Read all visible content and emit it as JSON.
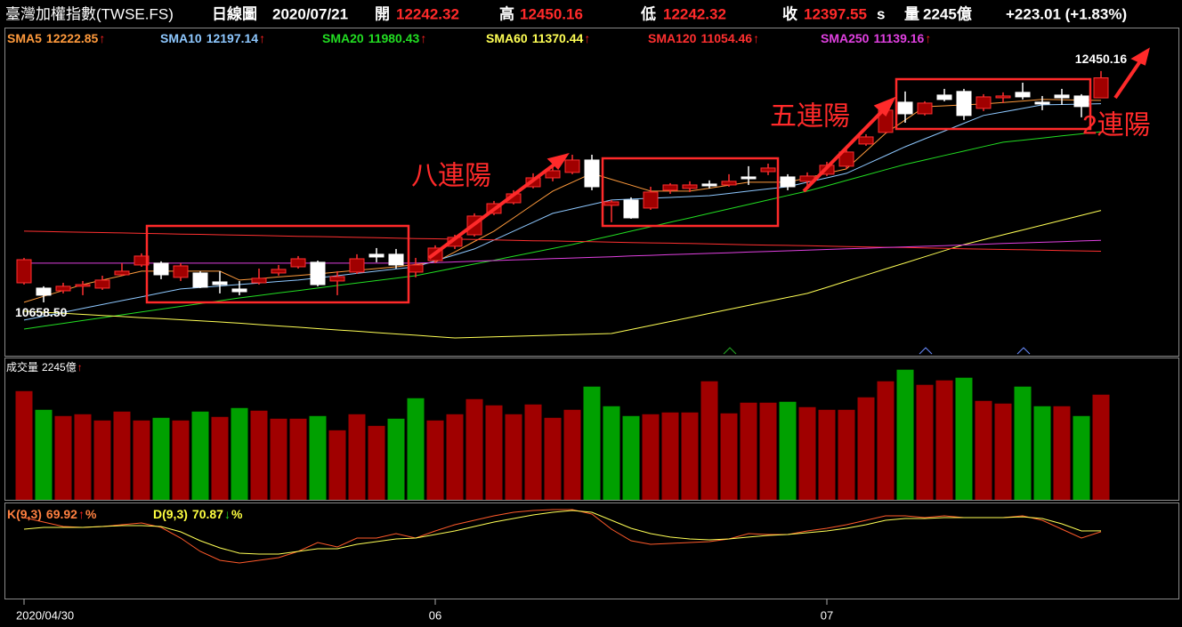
{
  "header": {
    "title": "臺灣加權指數(TWSE.FS)",
    "period": "日線圖",
    "date": "2020/07/21",
    "open_label": "開",
    "open": "12242.32",
    "high_label": "高",
    "high": "12450.16",
    "low_label": "低",
    "low": "12242.32",
    "close_label": "收",
    "close": "12397.55",
    "close_suffix": "s",
    "volume_label": "量",
    "volume": "2245億",
    "change": "+223.01 (+1.83%)"
  },
  "chart_data": [
    {
      "type": "candlestick",
      "categories": [
        "2020/04/30",
        null,
        null,
        null,
        null,
        null,
        null,
        null,
        null,
        null,
        null,
        null,
        null,
        null,
        null,
        null,
        null,
        null,
        null,
        null,
        null,
        "06",
        null,
        null,
        null,
        null,
        null,
        null,
        null,
        null,
        null,
        null,
        null,
        null,
        null,
        null,
        null,
        null,
        null,
        null,
        null,
        "07",
        null,
        null,
        null,
        null,
        null,
        null,
        null,
        null,
        null,
        null,
        null,
        null,
        null,
        null
      ],
      "open": [
        10810,
        10769,
        10748,
        10783,
        10769,
        10872,
        10948,
        10962,
        10852,
        10886,
        10817,
        10762,
        10810,
        10886,
        10934,
        10969,
        10824,
        10893,
        11031,
        11031,
        10893,
        10982,
        11093,
        11182,
        11348,
        11430,
        11554,
        11623,
        11665,
        11761,
        11410,
        11451,
        11389,
        11527,
        11541,
        11575,
        11568,
        11630,
        11671,
        11630,
        11596,
        11651,
        11713,
        11885,
        11975,
        12209,
        12119,
        12264,
        12292,
        12161,
        12243,
        12285,
        12209,
        12264,
        12257,
        12242.32
      ],
      "high": [
        11003,
        10783,
        10810,
        10824,
        10865,
        10962,
        11038,
        10976,
        10962,
        10900,
        10900,
        10824,
        10920,
        10948,
        11017,
        10982,
        10900,
        11031,
        11079,
        11072,
        11003,
        11100,
        11182,
        11348,
        11444,
        11527,
        11658,
        11706,
        11802,
        11802,
        11451,
        11472,
        11554,
        11582,
        11596,
        11603,
        11651,
        11713,
        11733,
        11651,
        11665,
        11747,
        11844,
        11961,
        12188,
        12292,
        12216,
        12312,
        12312,
        12271,
        12285,
        12360,
        12257,
        12312,
        12271,
        12450.16
      ],
      "low": [
        10796,
        10658.5,
        10728,
        10714,
        10755,
        10865,
        10934,
        10838,
        10824,
        10769,
        10728,
        10714,
        10796,
        10865,
        10920,
        10783,
        10714,
        10879,
        10969,
        10920,
        10852,
        10962,
        11072,
        11168,
        11334,
        11417,
        11541,
        11596,
        11651,
        11527,
        11279,
        11306,
        11375,
        11499,
        11513,
        11541,
        11554,
        11568,
        11644,
        11527,
        11554,
        11637,
        11692,
        11871,
        11968,
        12050,
        12106,
        12216,
        12071,
        12140,
        12202,
        12230,
        12147,
        12188,
        12092,
        12242.32
      ],
      "close": [
        10989,
        10714,
        10783,
        10796,
        10831,
        10900,
        11017,
        10872,
        10941,
        10776,
        10796,
        10741,
        10845,
        10914,
        10996,
        10796,
        10858,
        10996,
        11010,
        10948,
        10948,
        11079,
        11162,
        11327,
        11423,
        11499,
        11623,
        11678,
        11761,
        11554,
        11437,
        11313,
        11513,
        11568,
        11568,
        11561,
        11596,
        11616,
        11699,
        11554,
        11637,
        11720,
        11823,
        11940,
        12147,
        12119,
        12202,
        12230,
        12106,
        12250,
        12257,
        12250,
        12195,
        12243,
        12175,
        12397.55
      ],
      "up_color": "#a00000",
      "up_edge": "#ff3030",
      "down_color": "#ffffff",
      "ylim": [
        10245,
        12780
      ],
      "max_label": "12450.16",
      "min_label": "10658.50",
      "overlays": [
        {
          "name": "SMA5",
          "color": "#ff9a3c",
          "trend": "↑",
          "trend_color": "#ff2020",
          "values": [
            10659,
            10705,
            10750,
            10796,
            10831,
            10865,
            10900,
            10900,
            10900,
            10900,
            10900,
            10831,
            10843,
            10855,
            10867,
            10879,
            10893,
            10907,
            10920,
            10934,
            10952,
            10969,
            11049,
            11130,
            11210,
            11313,
            11417,
            11520,
            11589,
            11658,
            11612,
            11566,
            11520,
            11520,
            11520,
            11543,
            11566,
            11589,
            11589,
            11589,
            11623,
            11658,
            11692,
            11830,
            11968,
            12071,
            12174,
            12181,
            12188,
            12195,
            12207,
            12218,
            12230,
            12228,
            12225,
            12222.85
          ]
        },
        {
          "name": "SMA10",
          "color": "#8ec8ff",
          "trend": "↑",
          "trend_color": "#ff2020",
          "values": [
            10521,
            10551,
            10581,
            10612,
            10642,
            10672,
            10702,
            10732,
            10762,
            10774,
            10785,
            10797,
            10808,
            10820,
            10831,
            10848,
            10865,
            10883,
            10900,
            10917,
            10934,
            10980,
            11026,
            11072,
            11141,
            11210,
            11279,
            11348,
            11382,
            11417,
            11451,
            11458,
            11465,
            11471,
            11478,
            11485,
            11502,
            11520,
            11537,
            11554,
            11589,
            11623,
            11658,
            11727,
            11795,
            11864,
            11925,
            11985,
            12046,
            12106,
            12133,
            12161,
            12188,
            12191,
            12194,
            12197.14
          ]
        },
        {
          "name": "SMA20",
          "color": "#22dd22",
          "trend": "↑",
          "trend_color": "#ff2020",
          "values": [
            10452,
            10474,
            10496,
            10518,
            10540,
            10562,
            10584,
            10606,
            10627,
            10649,
            10671,
            10693,
            10712,
            10731,
            10750,
            10769,
            10789,
            10808,
            10827,
            10846,
            10865,
            10895,
            10925,
            10955,
            10985,
            11016,
            11046,
            11076,
            11106,
            11141,
            11175,
            11210,
            11244,
            11279,
            11313,
            11348,
            11382,
            11417,
            11451,
            11486,
            11520,
            11561,
            11603,
            11644,
            11686,
            11727,
            11761,
            11796,
            11830,
            11865,
            11899,
            11915,
            11931,
            11948,
            11964,
            11980.43
          ]
        },
        {
          "name": "SMA60",
          "color": "#ffff55",
          "trend": "↑",
          "trend_color": "#ff2020",
          "values": [
            10590,
            10582,
            10574,
            10565,
            10557,
            10549,
            10540,
            10532,
            10524,
            10515,
            10507,
            10497,
            10486,
            10476,
            10466,
            10455,
            10445,
            10435,
            10424,
            10414,
            10404,
            10393,
            10383,
            10387,
            10391,
            10396,
            10400,
            10404,
            10409,
            10413,
            10417,
            10448,
            10479,
            10510,
            10541,
            10573,
            10604,
            10635,
            10666,
            10697,
            10728,
            10775,
            10823,
            10870,
            10917,
            10964,
            11012,
            11059,
            11106,
            11144,
            11182,
            11219,
            11257,
            11295,
            11333,
            11370.44
          ]
        },
        {
          "name": "SMA120",
          "color": "#ff3030",
          "trend": "↑",
          "trend_color": "#ff2020",
          "values": [
            11210,
            11207,
            11204,
            11202,
            11199,
            11196,
            11193,
            11190,
            11187,
            11185,
            11182,
            11179,
            11176,
            11173,
            11170,
            11168,
            11165,
            11162,
            11159,
            11156,
            11153,
            11151,
            11148,
            11145,
            11142,
            11139,
            11136,
            11134,
            11131,
            11128,
            11125,
            11122,
            11119,
            11117,
            11114,
            11111,
            11108,
            11105,
            11102,
            11100,
            11097,
            11094,
            11091,
            11088,
            11085,
            11083,
            11080,
            11077,
            11074,
            11071,
            11068,
            11066,
            11063,
            11060,
            11057,
            11054.46
          ]
        },
        {
          "name": "SMA250",
          "color": "#e040e0",
          "trend": "↑",
          "trend_color": "#ff2020",
          "values": [
            10962,
            10962,
            10962,
            10962,
            10962,
            10962,
            10962,
            10962,
            10962,
            10962,
            10962,
            10962,
            10962,
            10962,
            10962,
            10962,
            10962,
            10962,
            10962,
            10962,
            10962,
            10967,
            10972,
            10977,
            10982,
            10987,
            10992,
            10997,
            11002,
            11007,
            11012,
            11018,
            11023,
            11028,
            11033,
            11038,
            11043,
            11048,
            11053,
            11058,
            11063,
            11068,
            11073,
            11078,
            11083,
            11088,
            11093,
            11098,
            11103,
            11109,
            11114,
            11119,
            11124,
            11129,
            11134,
            11139.16
          ]
        }
      ],
      "annotations": [
        "八連陽",
        "五連陽",
        "2連陽"
      ]
    },
    {
      "type": "bar",
      "title": "成交量",
      "latest_label": "2245億",
      "trend": "↑",
      "trend_color": "#ff2020",
      "ylim": [
        0,
        3000
      ],
      "values": [
        2321,
        1922,
        1789,
        1827,
        1694,
        1884,
        1694,
        1751,
        1694,
        1884,
        1770,
        1960,
        1903,
        1732,
        1732,
        1789,
        1484,
        1827,
        1579,
        1732,
        2169,
        1694,
        1827,
        2150,
        2017,
        1827,
        2036,
        1751,
        1922,
        2417,
        1998,
        1789,
        1827,
        1865,
        1865,
        2531,
        1846,
        2074,
        2074,
        2093,
        1979,
        1922,
        1922,
        2188,
        2531,
        2778,
        2455,
        2550,
        2607,
        2112,
        2055,
        2417,
        1998,
        1998,
        1789,
        2245
      ],
      "colors": [
        "#a00000",
        "#00a000",
        "#a00000",
        "#a00000",
        "#a00000",
        "#a00000",
        "#a00000",
        "#00a000",
        "#a00000",
        "#00a000",
        "#a00000",
        "#00a000",
        "#a00000",
        "#a00000",
        "#a00000",
        "#00a000",
        "#a00000",
        "#a00000",
        "#a00000",
        "#00a000",
        "#00a000",
        "#a00000",
        "#a00000",
        "#a00000",
        "#a00000",
        "#a00000",
        "#a00000",
        "#a00000",
        "#a00000",
        "#00a000",
        "#00a000",
        "#00a000",
        "#a00000",
        "#a00000",
        "#a00000",
        "#a00000",
        "#a00000",
        "#a00000",
        "#a00000",
        "#00a000",
        "#a00000",
        "#a00000",
        "#a00000",
        "#a00000",
        "#a00000",
        "#00a000",
        "#a00000",
        "#a00000",
        "#00a000",
        "#a00000",
        "#a00000",
        "#00a000",
        "#00a000",
        "#a00000",
        "#00a000",
        "#a00000"
      ]
    },
    {
      "type": "line",
      "ylim": [
        0,
        100
      ],
      "series": [
        {
          "name": "K(9,3)",
          "color": "#ff5a2a",
          "label_color": "#ff8040",
          "trend": "↑",
          "trend_color": "#ff2020",
          "suffix": "%",
          "values": [
            84.9,
            80.2,
            75.5,
            74.5,
            75.5,
            77.4,
            79.2,
            74.5,
            63.2,
            49.1,
            39.6,
            36.8,
            39.6,
            42.5,
            49.1,
            58.5,
            53.8,
            63.2,
            63.2,
            67.9,
            63.2,
            70.8,
            77.4,
            82.1,
            86.8,
            90.6,
            92.5,
            93.4,
            93.4,
            88.7,
            72.6,
            60.4,
            56.6,
            57.5,
            58.5,
            59.4,
            62.3,
            67.9,
            67.0,
            67.0,
            70.8,
            73.6,
            77.4,
            82.1,
            86.8,
            86.8,
            84.9,
            86.8,
            84.9,
            84.9,
            84.9,
            86.8,
            82.1,
            72.6,
            63.2,
            69.92
          ]
        },
        {
          "name": "D(9,3)",
          "color": "#ffff55",
          "label_color": "#ffff40",
          "trend": "↓",
          "trend_color": "#22dd22",
          "suffix": "%",
          "values": [
            72.6,
            74.5,
            74.5,
            74.5,
            75.5,
            76.4,
            76.4,
            75.5,
            69.8,
            60.4,
            52.8,
            47.2,
            46.2,
            46.2,
            49.1,
            51.9,
            51.9,
            56.6,
            59.4,
            62.3,
            63.2,
            67.0,
            70.8,
            75.5,
            80.2,
            84.0,
            87.7,
            90.6,
            92.5,
            90.6,
            82.1,
            73.6,
            67.9,
            64.2,
            62.3,
            61.3,
            62.3,
            64.2,
            66.0,
            67.0,
            68.9,
            70.8,
            73.6,
            77.4,
            82.1,
            84.0,
            84.0,
            84.9,
            84.9,
            84.9,
            84.9,
            85.8,
            84.0,
            78.3,
            70.8,
            70.87
          ]
        }
      ]
    }
  ]
}
